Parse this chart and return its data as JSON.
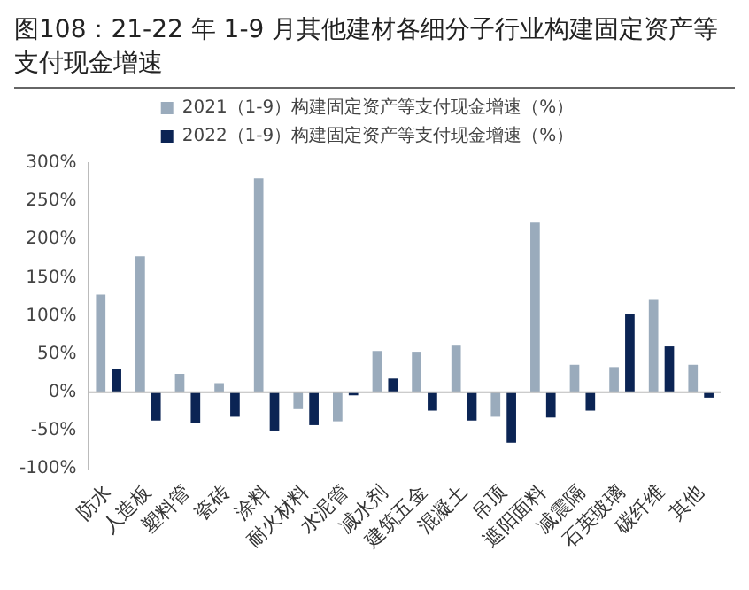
{
  "chart_data": {
    "type": "bar",
    "title": "图108：21-22 年 1-9 月其他建材各细分子行业构建固定资产等支付现金增速",
    "categories": [
      "防水",
      "人造板",
      "塑料管",
      "瓷砖",
      "涂料",
      "耐火材料",
      "水泥管",
      "减水剂",
      "建筑五金",
      "混凝土",
      "吊顶",
      "遮阳面料",
      "减震隔",
      "石英玻璃",
      "碳纤维",
      "其他"
    ],
    "series": [
      {
        "name": "2021（1-9）构建固定资产等支付现金增速（%）",
        "color": "#9aabbc",
        "values": [
          128,
          178,
          24,
          12,
          280,
          -22,
          -38,
          54,
          53,
          61,
          -32,
          222,
          36,
          33,
          121,
          36
        ]
      },
      {
        "name": "2022（1-9）构建固定资产等支付现金增速（%）",
        "color": "#0b2454",
        "values": [
          31,
          -37,
          -40,
          -32,
          -50,
          -43,
          -4,
          18,
          -24,
          -37,
          -66,
          -33,
          -24,
          103,
          60,
          -7
        ]
      }
    ],
    "ylim": [
      -100,
      300
    ],
    "yticks": [
      {
        "value": -100,
        "label": "-100%"
      },
      {
        "value": -50,
        "label": "-50%"
      },
      {
        "value": 0,
        "label": "0%"
      },
      {
        "value": 50,
        "label": "50%"
      },
      {
        "value": 100,
        "label": "100%"
      },
      {
        "value": 150,
        "label": "150%"
      },
      {
        "value": 200,
        "label": "200%"
      },
      {
        "value": 250,
        "label": "250%"
      },
      {
        "value": 300,
        "label": "300%"
      }
    ],
    "ref_lines": [
      {
        "axis": "y",
        "value": 0,
        "color": "#bbbbbb"
      }
    ],
    "grid": false,
    "legend": "top"
  }
}
